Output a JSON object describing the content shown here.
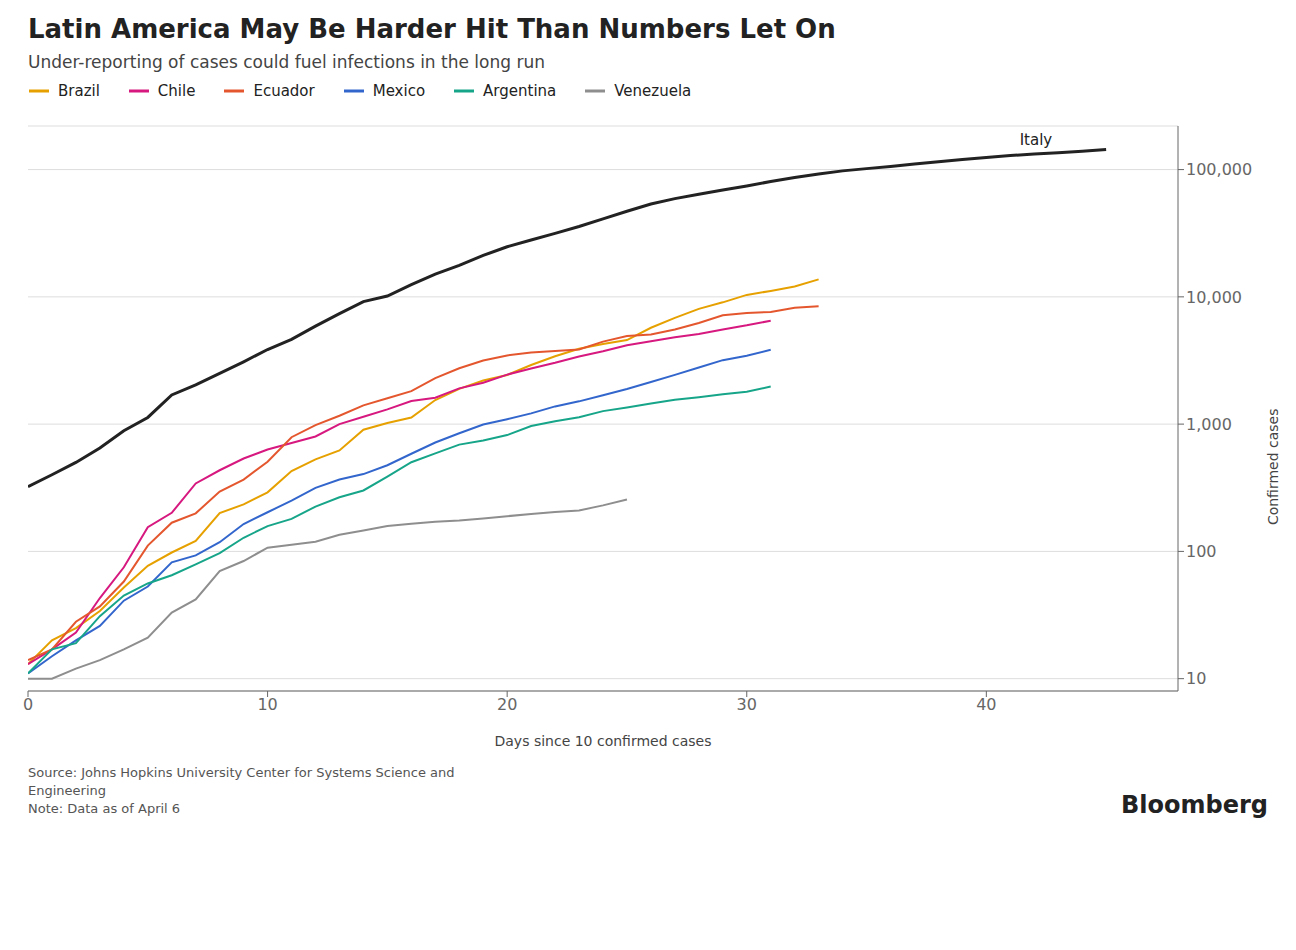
{
  "chart_data": {
    "type": "line",
    "title": "Latin America May Be Harder Hit Than Numbers Let On",
    "subtitle": "Under-reporting of cases could fuel infections in the long run",
    "xlabel": "Days since 10 confirmed cases",
    "ylabel": "Confirmed cases",
    "log": "y",
    "grid": true,
    "legend": "top",
    "xlim": [
      0,
      48
    ],
    "xticks": [
      0,
      10,
      20,
      30,
      40
    ],
    "ylim": [
      8,
      220000
    ],
    "yticks": [
      10,
      100,
      {
        "value": 1000,
        "label": "1,000"
      },
      {
        "value": 10000,
        "label": "10,000"
      },
      {
        "value": 100000,
        "label": "100,000"
      }
    ],
    "annotations": [
      {
        "text": "Italy",
        "x": 43,
        "y": 135586
      }
    ],
    "source": "Source: Johns Hopkins University Center for Systems Science and\nEngineering\nNote: Data as of April 6",
    "credit": "Bloomberg",
    "series": [
      {
        "name": "Italy",
        "x": [
          0,
          1,
          2,
          3,
          4,
          5,
          6,
          7,
          8,
          9,
          10,
          11,
          12,
          13,
          14,
          15,
          16,
          17,
          18,
          19,
          20,
          21,
          22,
          23,
          24,
          25,
          26,
          27,
          28,
          29,
          30,
          31,
          32,
          33,
          34,
          35,
          36,
          37,
          38,
          39,
          40,
          41,
          42,
          43,
          44,
          45
        ],
        "values": [
          322,
          400,
          500,
          650,
          888,
          1128,
          1694,
          2036,
          2502,
          3089,
          3858,
          4636,
          5883,
          7375,
          9172,
          10149,
          12462,
          15113,
          17660,
          21157,
          24747,
          27980,
          31506,
          35713,
          41035,
          47021,
          53578,
          59138,
          63927,
          69176,
          74386,
          80589,
          86498,
          92472,
          97689,
          101739,
          105792,
          110574,
          115242,
          119827,
          124632,
          128948,
          132547,
          135586,
          139422,
          143626
        ]
      },
      {
        "name": "Brazil",
        "x": [
          0,
          1,
          2,
          3,
          4,
          5,
          6,
          7,
          8,
          9,
          10,
          11,
          12,
          13,
          14,
          15,
          16,
          17,
          18,
          19,
          20,
          21,
          22,
          23,
          24,
          25,
          26,
          27,
          28,
          29,
          30,
          31,
          32,
          33
        ],
        "values": [
          13,
          20,
          25,
          34,
          52,
          77,
          98,
          121,
          200,
          234,
          291,
          428,
          529,
          621,
          904,
          1021,
          1128,
          1546,
          1891,
          2201,
          2433,
          2915,
          3417,
          3904,
          4256,
          4579,
          5717,
          6836,
          8044,
          9056,
          10360,
          11130,
          12056,
          13717
        ]
      },
      {
        "name": "Chile",
        "x": [
          0,
          1,
          2,
          3,
          4,
          5,
          6,
          7,
          8,
          9,
          10,
          11,
          12,
          13,
          14,
          15,
          16,
          17,
          18,
          19,
          20,
          21,
          22,
          23,
          24,
          25,
          26,
          27,
          28,
          29,
          30,
          31
        ],
        "values": [
          13,
          17,
          23,
          43,
          75,
          155,
          201,
          342,
          434,
          537,
          632,
          710,
          800,
          1000,
          1142,
          1306,
          1520,
          1610,
          1909,
          2114,
          2449,
          2738,
          3031,
          3404,
          3737,
          4161,
          4474,
          4815,
          5116,
          5546,
          5972,
          6501
        ]
      },
      {
        "name": "Ecuador",
        "x": [
          0,
          1,
          2,
          3,
          4,
          5,
          6,
          7,
          8,
          9,
          10,
          11,
          12,
          13,
          14,
          15,
          16,
          17,
          18,
          19,
          20,
          21,
          22,
          23,
          24,
          25,
          26,
          27,
          28,
          29,
          30,
          31,
          32,
          33
        ],
        "values": [
          14,
          17,
          28,
          37,
          58,
          111,
          168,
          199,
          295,
          367,
          506,
          789,
          981,
          1164,
          1403,
          1595,
          1818,
          2302,
          2748,
          3163,
          3465,
          3646,
          3747,
          3861,
          4450,
          4917,
          5067,
          5532,
          6234,
          7161,
          7466,
          7603,
          8225,
          8450
        ]
      },
      {
        "name": "Mexico",
        "x": [
          0,
          1,
          2,
          3,
          4,
          5,
          6,
          7,
          8,
          9,
          10,
          11,
          12,
          13,
          14,
          15,
          16,
          17,
          18,
          19,
          20,
          21,
          22,
          23,
          24,
          25,
          26,
          27,
          28,
          29,
          30,
          31
        ],
        "values": [
          11,
          15,
          20,
          26,
          41,
          53,
          82,
          93,
          118,
          164,
          203,
          251,
          316,
          367,
          405,
          475,
          585,
          717,
          848,
          993,
          1094,
          1215,
          1378,
          1510,
          1688,
          1890,
          2143,
          2439,
          2785,
          3181,
          3441,
          3844
        ]
      },
      {
        "name": "Argentina",
        "x": [
          0,
          1,
          2,
          3,
          4,
          5,
          6,
          7,
          8,
          9,
          10,
          11,
          12,
          13,
          14,
          15,
          16,
          17,
          18,
          19,
          20,
          21,
          22,
          23,
          24,
          25,
          26,
          27,
          28,
          29,
          30,
          31
        ],
        "values": [
          11,
          17,
          19,
          31,
          45,
          56,
          65,
          79,
          97,
          128,
          158,
          180,
          225,
          266,
          301,
          387,
          502,
          589,
          690,
          745,
          820,
          966,
          1054,
          1133,
          1265,
          1353,
          1451,
          1554,
          1628,
          1715,
          1795,
          1975
        ]
      },
      {
        "name": "Venezuela",
        "x": [
          0,
          1,
          2,
          3,
          4,
          5,
          6,
          7,
          8,
          9,
          10,
          11,
          12,
          13,
          14,
          15,
          16,
          17,
          18,
          19,
          20,
          21,
          22,
          23,
          24,
          25
        ],
        "values": [
          10,
          10,
          12,
          14,
          17,
          21,
          33,
          42,
          70,
          84,
          107,
          113,
          119,
          135,
          146,
          158,
          165,
          171,
          175,
          181,
          189,
          197,
          204,
          210,
          230,
          256
        ]
      }
    ]
  }
}
